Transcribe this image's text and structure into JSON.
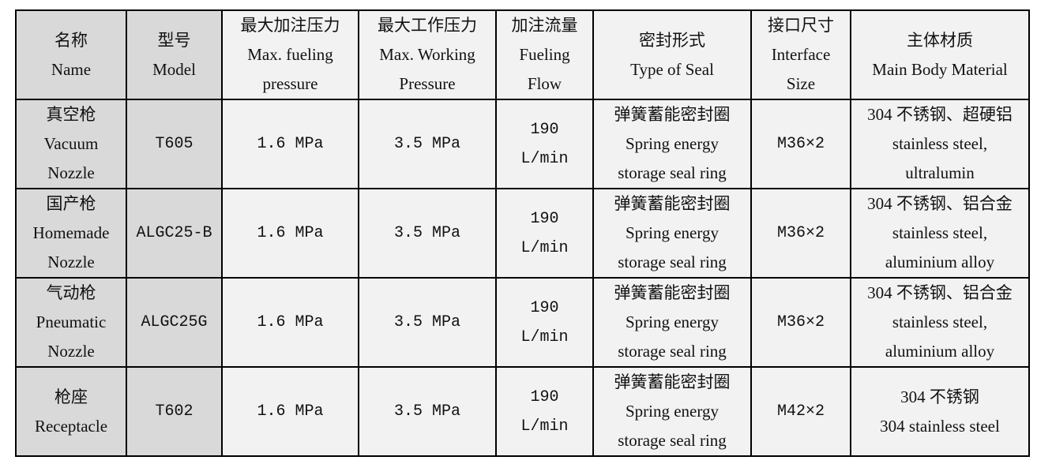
{
  "headers": [
    [
      "名称",
      "Name"
    ],
    [
      "型号",
      "Model"
    ],
    [
      "最大加注压力",
      "Max. fueling",
      "pressure"
    ],
    [
      "最大工作压力",
      "Max. Working",
      "Pressure"
    ],
    [
      "加注流量",
      "Fueling",
      "Flow"
    ],
    [
      "密封形式",
      "Type of Seal"
    ],
    [
      "接口尺寸",
      "Interface",
      "Size"
    ],
    [
      "主体材质",
      "Main Body Material"
    ]
  ],
  "rows": [
    {
      "name": [
        "真空枪",
        "Vacuum",
        "Nozzle"
      ],
      "model": "T605",
      "max_fueling": "1.6 MPa",
      "max_working": "3.5 MPa",
      "flow": [
        "190",
        "L/min"
      ],
      "seal": [
        "弹簧蓄能密封圈",
        "Spring energy",
        "storage seal ring"
      ],
      "interface": "M36×2",
      "material": [
        "304 不锈钢、超硬铝",
        "stainless steel,",
        "ultralumin"
      ]
    },
    {
      "name": [
        "国产枪",
        "Homemade",
        "Nozzle"
      ],
      "model": "ALGC25-B",
      "max_fueling": "1.6 MPa",
      "max_working": "3.5 MPa",
      "flow": [
        "190",
        "L/min"
      ],
      "seal": [
        "弹簧蓄能密封圈",
        "Spring energy",
        "storage seal ring"
      ],
      "interface": "M36×2",
      "material": [
        "304 不锈钢、铝合金",
        "stainless steel,",
        "aluminium alloy"
      ]
    },
    {
      "name": [
        "气动枪",
        "Pneumatic",
        "Nozzle"
      ],
      "model": "ALGC25G",
      "max_fueling": "1.6 MPa",
      "max_working": "3.5 MPa",
      "flow": [
        "190",
        "L/min"
      ],
      "seal": [
        "弹簧蓄能密封圈",
        "Spring energy",
        "storage seal ring"
      ],
      "interface": "M36×2",
      "material": [
        "304 不锈钢、铝合金",
        "stainless steel,",
        "aluminium alloy"
      ]
    },
    {
      "name": [
        "枪座",
        "Receptacle"
      ],
      "model": "T602",
      "max_fueling": "1.6 MPa",
      "max_working": "3.5 MPa",
      "flow": [
        "190",
        "L/min"
      ],
      "seal": [
        "弹簧蓄能密封圈",
        "Spring energy",
        "storage seal ring"
      ],
      "interface": "M42×2",
      "material": [
        "304 不锈钢",
        "304  stainless steel"
      ]
    }
  ]
}
